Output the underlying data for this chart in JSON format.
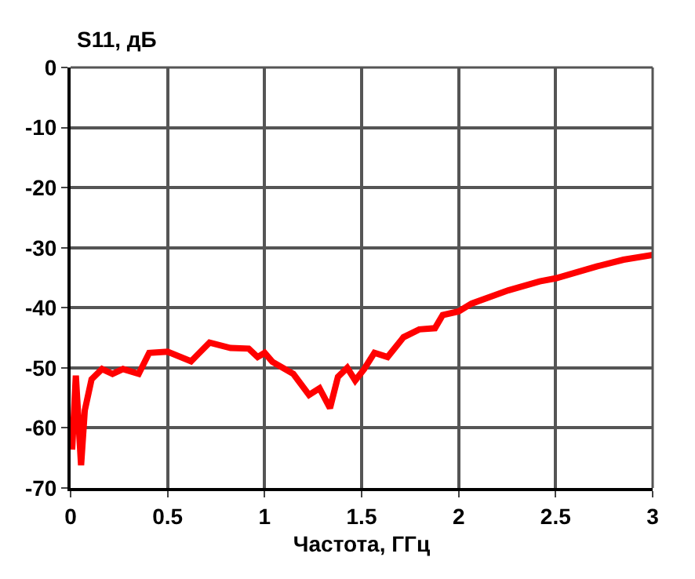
{
  "chart_data": {
    "type": "line",
    "xlabel": "Частота, ГГц",
    "ylabel": "S11, дБ",
    "x": [
      0.008,
      0.027,
      0.054,
      0.073,
      0.108,
      0.162,
      0.216,
      0.27,
      0.351,
      0.405,
      0.5,
      0.621,
      0.716,
      0.824,
      0.918,
      0.964,
      1.0,
      1.04,
      1.148,
      1.229,
      1.283,
      1.337,
      1.378,
      1.426,
      1.467,
      1.513,
      1.566,
      1.634,
      1.716,
      1.797,
      1.878,
      1.918,
      2.0,
      2.067,
      2.256,
      2.418,
      2.5,
      2.715,
      2.85,
      3.0
    ],
    "series": [
      {
        "color": "#ff0000",
        "values": [
          -63.6,
          -51.3,
          -66.2,
          -57.1,
          -51.9,
          -50.2,
          -51,
          -50.2,
          -51,
          -47.5,
          -47.3,
          -48.9,
          -45.8,
          -46.7,
          -46.8,
          -48.2,
          -47.5,
          -49,
          -51,
          -54.5,
          -53.4,
          -56.7,
          -51.5,
          -50,
          -52.1,
          -50.2,
          -47.5,
          -48.2,
          -44.9,
          -43.6,
          -43.4,
          -41.2,
          -40.6,
          -39.3,
          -37.1,
          -35.6,
          -35.1,
          -33.1,
          -32.0,
          -31.2
        ]
      }
    ],
    "xlim": [
      0,
      3
    ],
    "xticks": [
      0,
      0.5,
      1,
      1.5,
      2,
      2.5,
      3
    ],
    "ylim": [
      -70,
      0
    ],
    "yticks": [
      -70,
      -60,
      -50,
      -40,
      -30,
      -20,
      -10,
      0
    ],
    "grid": true,
    "line_style": "solid",
    "marker": "none"
  }
}
